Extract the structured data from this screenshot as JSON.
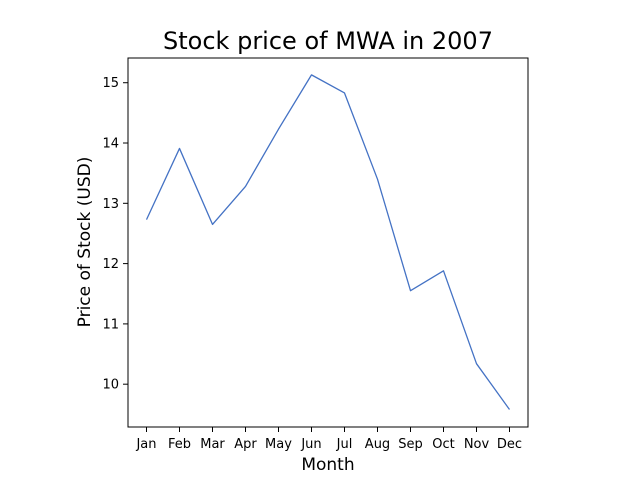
{
  "chart_data": {
    "type": "line",
    "title": "Stock price of MWA in 2007",
    "xlabel": "Month",
    "ylabel": "Price of Stock (USD)",
    "categories": [
      "Jan",
      "Feb",
      "Mar",
      "Apr",
      "May",
      "Jun",
      "Jul",
      "Aug",
      "Sep",
      "Oct",
      "Nov",
      "Dec"
    ],
    "series": [
      {
        "values": [
          12.73,
          13.91,
          12.65,
          13.28,
          14.23,
          15.13,
          14.83,
          13.4,
          11.55,
          11.88,
          10.34,
          9.58
        ]
      }
    ],
    "yticks": [
      10,
      11,
      12,
      13,
      14,
      15
    ],
    "ylim": [
      9.29,
      15.41
    ],
    "grid": false,
    "line_color": "#4472c4"
  }
}
